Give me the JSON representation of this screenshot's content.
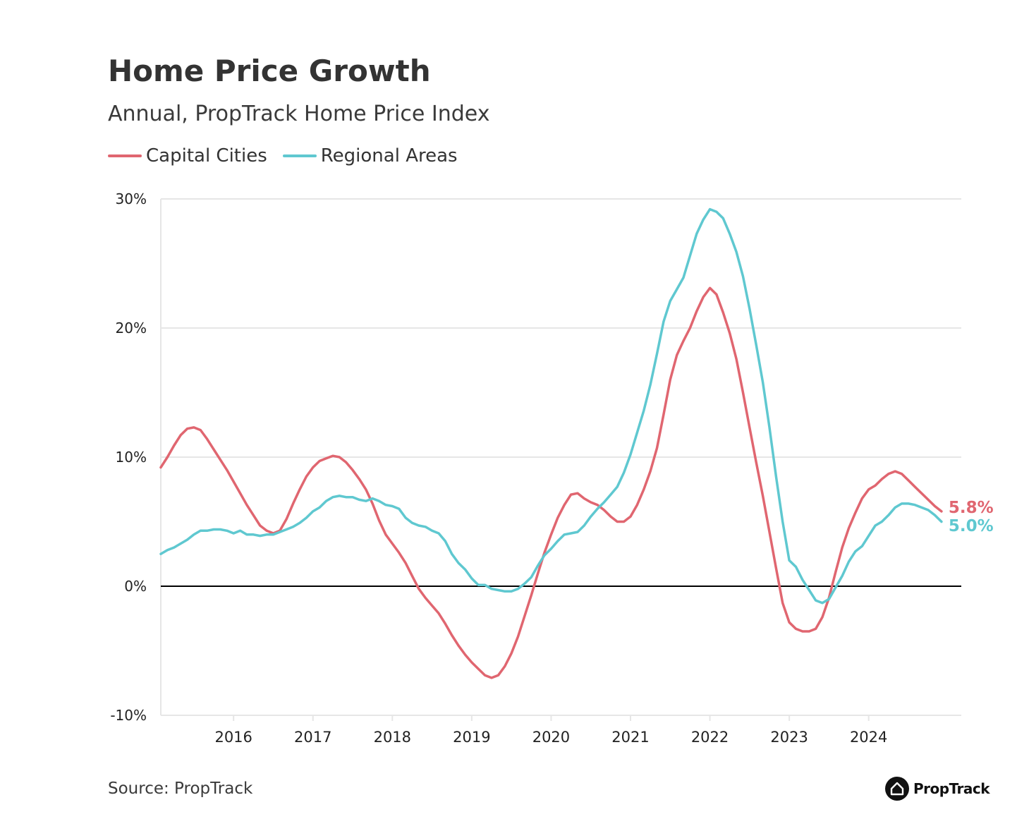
{
  "header": {
    "title": "Home Price Growth",
    "subtitle": "Annual, PropTrack Home Price Index"
  },
  "footer": {
    "source": "Source: PropTrack",
    "brand": "PropTrack",
    "brand_icon": "house-icon"
  },
  "colors": {
    "capital": "#e06670",
    "regional": "#5fc8d0",
    "grid": "#e6e6e6",
    "zero_line": "#000000",
    "axis_text": "#222222"
  },
  "chart_data": {
    "type": "line",
    "title": "Home Price Growth",
    "subtitle": "Annual, PropTrack Home Price Index",
    "xlabel": "",
    "ylabel": "",
    "x_start": "2015-02",
    "x_frequency": "monthly",
    "xlim": [
      "2015-02",
      "2025-03"
    ],
    "ylim": [
      -10,
      30
    ],
    "y_ticks": [
      -10,
      0,
      10,
      20,
      30
    ],
    "y_tick_labels": [
      "-10%",
      "0%",
      "10%",
      "20%",
      "30%"
    ],
    "x_tick_labels": [
      "2016",
      "2017",
      "2018",
      "2019",
      "2020",
      "2021",
      "2022",
      "2023",
      "2024"
    ],
    "x_tick_dates": [
      "2016-01",
      "2017-01",
      "2018-01",
      "2019-01",
      "2020-01",
      "2021-01",
      "2022-01",
      "2023-01",
      "2024-01"
    ],
    "grid": true,
    "legend": "top-left",
    "series": [
      {
        "name": "Capital Cities",
        "color": "#e06670",
        "end_label": "5.8%",
        "values": [
          9.2,
          10.0,
          10.9,
          11.7,
          12.2,
          12.3,
          12.1,
          11.4,
          10.6,
          9.8,
          9.0,
          8.1,
          7.2,
          6.3,
          5.5,
          4.7,
          4.3,
          4.1,
          4.3,
          5.2,
          6.4,
          7.5,
          8.5,
          9.2,
          9.7,
          9.9,
          10.1,
          10.0,
          9.6,
          9.0,
          8.3,
          7.5,
          6.4,
          5.1,
          4.0,
          3.3,
          2.6,
          1.8,
          0.8,
          -0.2,
          -0.9,
          -1.5,
          -2.1,
          -2.9,
          -3.8,
          -4.6,
          -5.3,
          -5.9,
          -6.4,
          -6.9,
          -7.1,
          -6.9,
          -6.2,
          -5.2,
          -3.9,
          -2.3,
          -0.7,
          1.0,
          2.6,
          4.0,
          5.3,
          6.3,
          7.1,
          7.2,
          6.8,
          6.5,
          6.3,
          5.9,
          5.4,
          5.0,
          5.0,
          5.4,
          6.3,
          7.5,
          8.9,
          10.7,
          13.3,
          16.0,
          17.9,
          19.0,
          20.0,
          21.3,
          22.4,
          23.1,
          22.6,
          21.2,
          19.6,
          17.6,
          15.0,
          12.3,
          9.6,
          7.0,
          4.2,
          1.4,
          -1.3,
          -2.8,
          -3.3,
          -3.5,
          -3.5,
          -3.3,
          -2.4,
          -0.9,
          1.1,
          3.0,
          4.5,
          5.7,
          6.8,
          7.5,
          7.8,
          8.3,
          8.7,
          8.9,
          8.7,
          8.2,
          7.7,
          7.2,
          6.7,
          6.2,
          5.8
        ]
      },
      {
        "name": "Regional Areas",
        "color": "#5fc8d0",
        "end_label": "5.0%",
        "values": [
          2.5,
          2.8,
          3.0,
          3.3,
          3.6,
          4.0,
          4.3,
          4.3,
          4.4,
          4.4,
          4.3,
          4.1,
          4.3,
          4.0,
          4.0,
          3.9,
          4.0,
          4.0,
          4.2,
          4.4,
          4.6,
          4.9,
          5.3,
          5.8,
          6.1,
          6.6,
          6.9,
          7.0,
          6.9,
          6.9,
          6.7,
          6.6,
          6.8,
          6.6,
          6.3,
          6.2,
          6.0,
          5.3,
          4.9,
          4.7,
          4.6,
          4.3,
          4.1,
          3.5,
          2.5,
          1.8,
          1.3,
          0.6,
          0.1,
          0.1,
          -0.2,
          -0.3,
          -0.4,
          -0.4,
          -0.2,
          0.2,
          0.7,
          1.6,
          2.4,
          2.9,
          3.5,
          4.0,
          4.1,
          4.2,
          4.7,
          5.4,
          6.0,
          6.5,
          7.1,
          7.7,
          8.8,
          10.2,
          11.9,
          13.6,
          15.6,
          18.0,
          20.5,
          22.1,
          23.0,
          23.9,
          25.6,
          27.3,
          28.4,
          29.2,
          29.0,
          28.5,
          27.3,
          25.9,
          24.0,
          21.5,
          18.7,
          15.8,
          12.3,
          8.5,
          5.0,
          2.0,
          1.5,
          0.5,
          -0.3,
          -1.1,
          -1.3,
          -1.0,
          -0.1,
          0.8,
          1.9,
          2.7,
          3.1,
          3.9,
          4.7,
          5.0,
          5.5,
          6.1,
          6.4,
          6.4,
          6.3,
          6.1,
          5.9,
          5.5,
          5.0
        ]
      }
    ]
  }
}
